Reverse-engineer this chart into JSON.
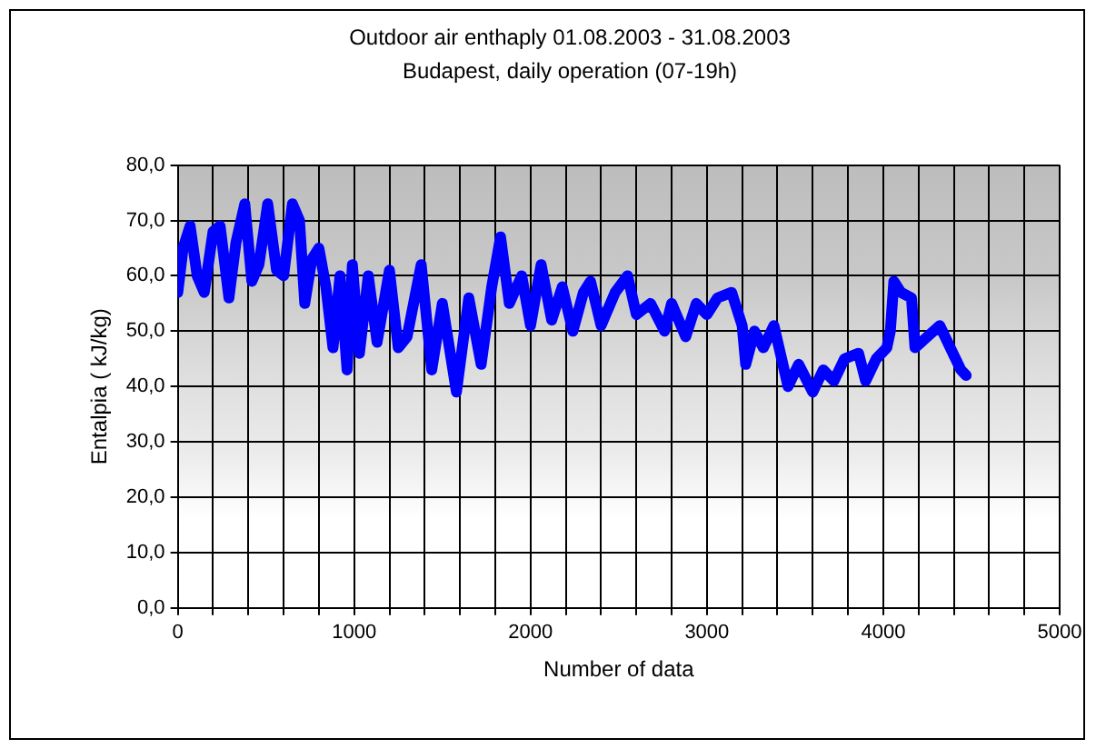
{
  "chart_data": {
    "type": "line",
    "title": "Outdoor air enthaply 01.08.2003 - 31.08.2003",
    "subtitle": "Budapest, daily operation (07-19h)",
    "xlabel": "Number of data",
    "ylabel": "Entalpia ( kJ/kg)",
    "series": [
      {
        "color": "#0000ff",
        "x": [
          0,
          30,
          70,
          110,
          150,
          200,
          240,
          290,
          330,
          380,
          420,
          460,
          510,
          560,
          600,
          650,
          690,
          720,
          760,
          800,
          840,
          880,
          920,
          960,
          990,
          1030,
          1080,
          1130,
          1200,
          1250,
          1300,
          1380,
          1440,
          1500,
          1580,
          1650,
          1720,
          1780,
          1830,
          1880,
          1950,
          2000,
          2060,
          2120,
          2180,
          2240,
          2300,
          2340,
          2400,
          2480,
          2550,
          2600,
          2680,
          2760,
          2800,
          2880,
          2940,
          3000,
          3060,
          3140,
          3200,
          3220,
          3270,
          3320,
          3380,
          3460,
          3520,
          3600,
          3660,
          3720,
          3780,
          3860,
          3900,
          3960,
          4020,
          4040,
          4060,
          4100,
          4160,
          4180,
          4250,
          4320,
          4380,
          4440,
          4470
        ],
        "values": [
          57,
          65,
          69,
          60,
          57,
          68,
          69,
          56,
          66,
          73,
          59,
          62,
          73,
          61,
          60,
          73,
          70,
          55,
          63,
          65,
          58,
          47,
          60,
          43,
          62,
          46,
          60,
          48,
          61,
          47,
          49,
          62,
          43,
          55,
          39,
          56,
          44,
          58,
          67,
          55,
          60,
          51,
          62,
          52,
          58,
          50,
          57,
          59,
          51,
          57,
          60,
          53,
          55,
          50,
          55,
          49,
          55,
          53,
          56,
          57,
          51,
          44,
          50,
          47,
          51,
          40,
          44,
          39,
          43,
          41,
          45,
          46,
          41,
          45,
          47,
          50,
          59,
          57,
          56,
          47,
          49,
          51,
          47,
          43,
          42
        ]
      }
    ],
    "xlim": [
      0,
      5000
    ],
    "ylim": [
      0,
      80
    ],
    "xticks": [
      0,
      {
        "value": 200,
        "label": null
      },
      {
        "value": 400,
        "label": null
      },
      {
        "value": 600,
        "label": null
      },
      {
        "value": 800,
        "label": null
      },
      1000,
      {
        "value": 1200,
        "label": null
      },
      {
        "value": 1400,
        "label": null
      },
      {
        "value": 1600,
        "label": null
      },
      {
        "value": 1800,
        "label": null
      },
      2000,
      {
        "value": 2200,
        "label": null
      },
      {
        "value": 2400,
        "label": null
      },
      {
        "value": 2600,
        "label": null
      },
      {
        "value": 2800,
        "label": null
      },
      3000,
      {
        "value": 3200,
        "label": null
      },
      {
        "value": 3400,
        "label": null
      },
      {
        "value": 3600,
        "label": null
      },
      {
        "value": 3800,
        "label": null
      },
      4000,
      {
        "value": 4200,
        "label": null
      },
      {
        "value": 4400,
        "label": null
      },
      {
        "value": 4600,
        "label": null
      },
      {
        "value": 4800,
        "label": null
      },
      5000
    ],
    "yticks": [
      {
        "value": 0,
        "label": "0,0"
      },
      {
        "value": 10,
        "label": "10,0"
      },
      {
        "value": 20,
        "label": "20,0"
      },
      {
        "value": 30,
        "label": "30,0"
      },
      {
        "value": 40,
        "label": "40,0"
      },
      {
        "value": 50,
        "label": "50,0"
      },
      {
        "value": 60,
        "label": "60,0"
      },
      {
        "value": 70,
        "label": "70,0"
      },
      {
        "value": 80,
        "label": "80,0"
      }
    ],
    "grid": true,
    "legend": false,
    "marker": "none",
    "line_style": "solid"
  }
}
